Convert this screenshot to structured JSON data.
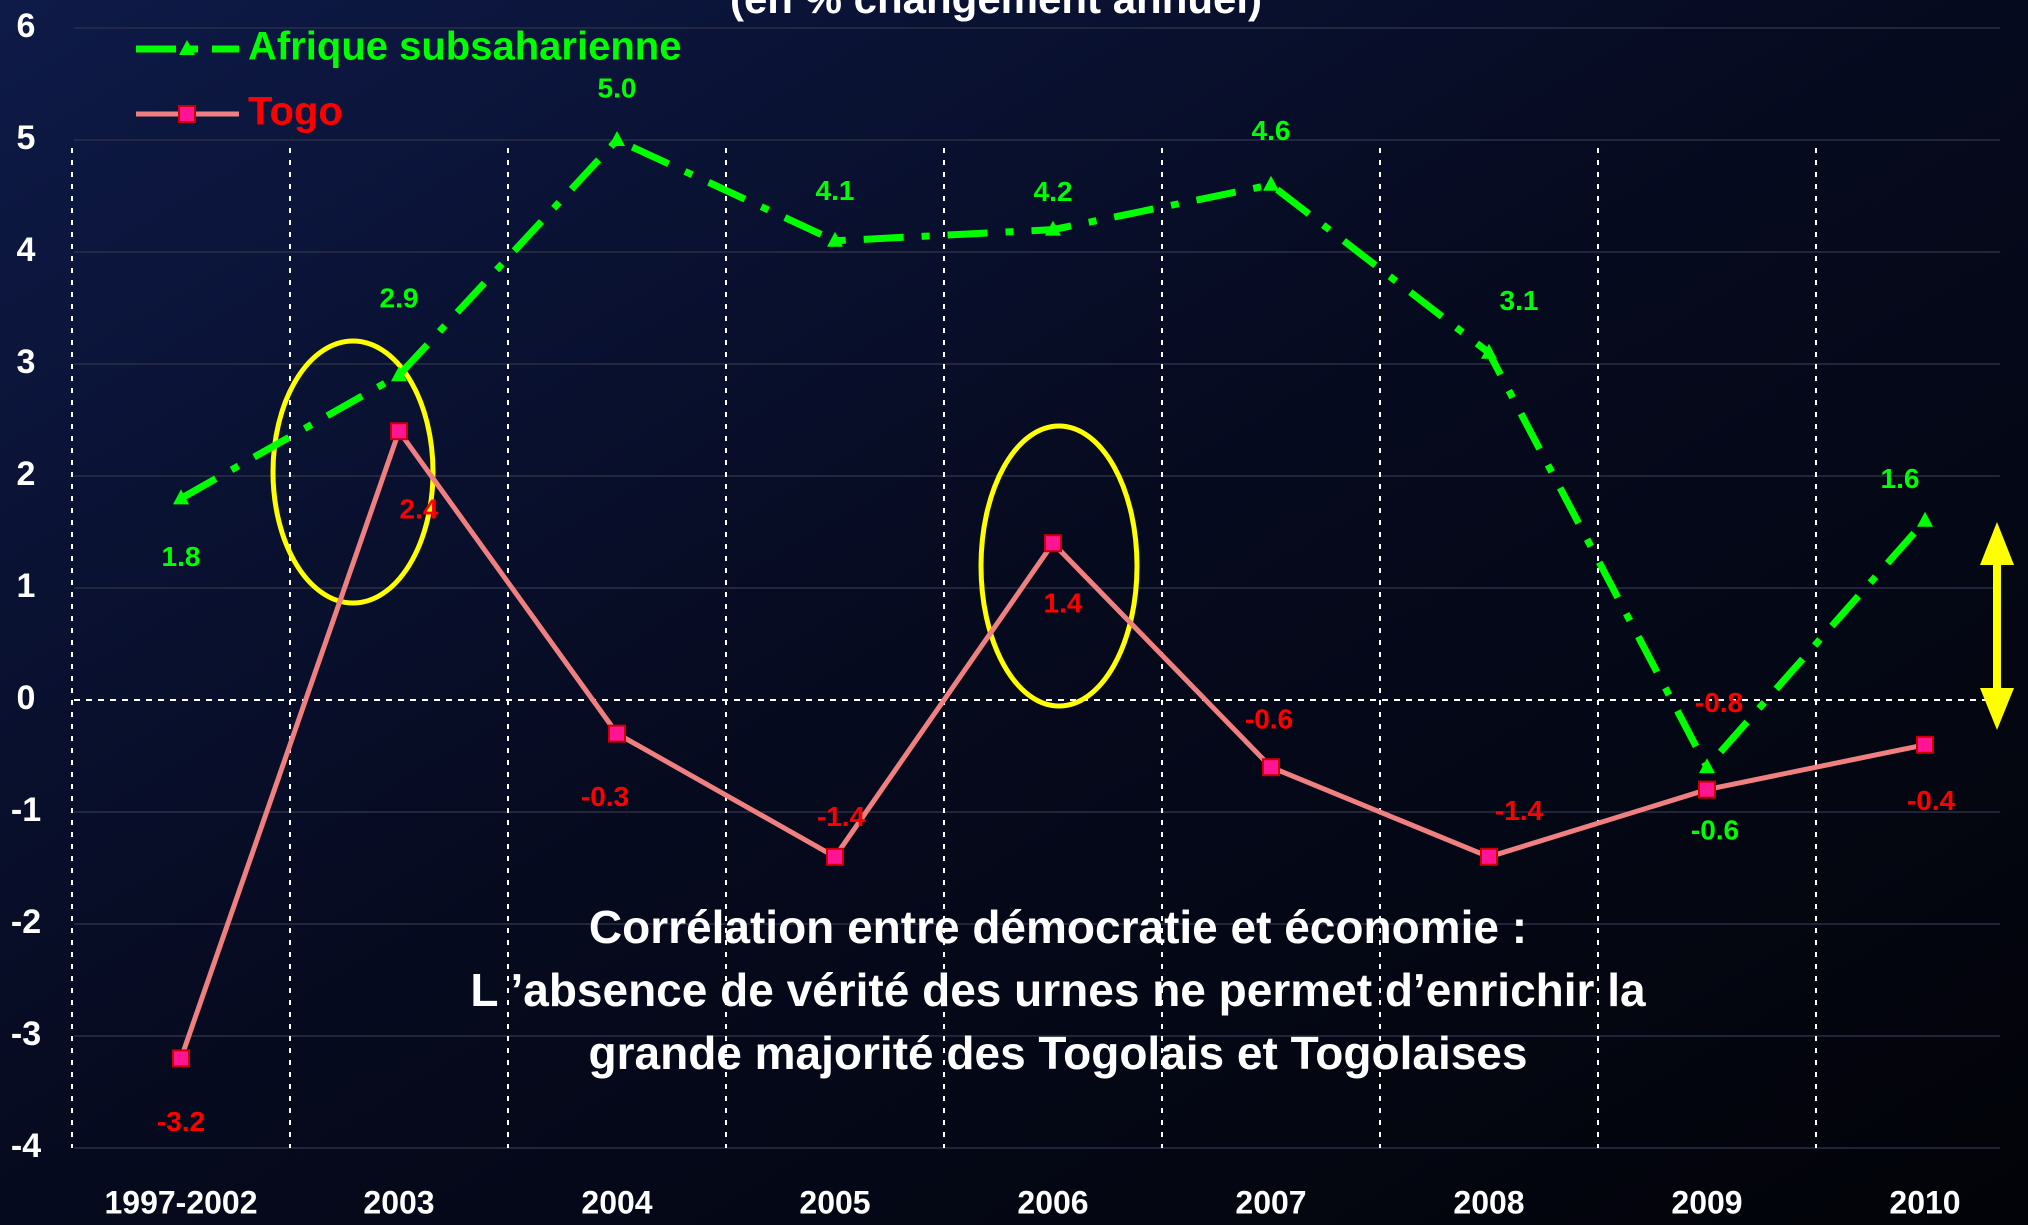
{
  "chart_data": {
    "type": "line",
    "title": "(en % changement annuel)",
    "annotation": [
      "Corrélation entre démocratie et économie :",
      "L ’absence de vérité des urnes ne permet d’enrichir la",
      "grande majorité des Togolais et Togolaises"
    ],
    "categories": [
      "1997-2002",
      "2003",
      "2004",
      "2005",
      "2006",
      "2007",
      "2008",
      "2009",
      "2010"
    ],
    "series": [
      {
        "name": "Afrique subsaharienne",
        "color": "#00ff00",
        "values": [
          1.8,
          2.9,
          5.0,
          4.1,
          4.2,
          4.6,
          3.1,
          -0.6,
          1.6
        ],
        "value_labels": [
          "1.8",
          "2.9",
          "5.0",
          "4.1",
          "4.2",
          "4.6",
          "3.1",
          "-0.6",
          "1.6"
        ]
      },
      {
        "name": "Togo",
        "color": "#f08080",
        "values": [
          -3.2,
          2.4,
          -0.3,
          -1.4,
          1.4,
          -0.6,
          -1.4,
          -0.8,
          -0.4
        ],
        "value_labels": [
          "-3.2",
          "2.4",
          "-0.3",
          "-1.4",
          "1.4",
          "-0.6",
          "-1.4",
          "-0.8",
          "-0.4"
        ]
      }
    ],
    "ylim": [
      -4,
      6
    ],
    "yticks": [
      -4,
      -3,
      -2,
      -1,
      0,
      1,
      2,
      3,
      4,
      5,
      6
    ],
    "grid": true,
    "legend": "top-left"
  }
}
